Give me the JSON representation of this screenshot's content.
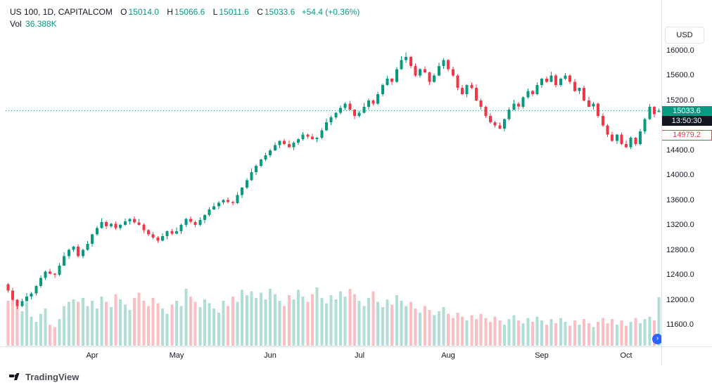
{
  "header": {
    "symbol": "US 100, 1D, CAPITALCOM",
    "ohlc": {
      "open_label": "O",
      "open": "15014.0",
      "high_label": "H",
      "high": "15066.6",
      "low_label": "L",
      "low": "15011.6",
      "close_label": "C",
      "close": "15033.6",
      "change": "+54.4 (+0.36%)"
    },
    "volume_label": "Vol",
    "volume_value": "36.388K"
  },
  "price_axis": {
    "currency_button": "USD",
    "ticks": [
      "16000.0",
      "15600.0",
      "15200.0",
      "14400.0",
      "14000.0",
      "13600.0",
      "13200.0",
      "12800.0",
      "12400.0",
      "12000.0",
      "11600.0"
    ],
    "last_price_badge": "15033.6",
    "countdown_badge": "13:50:30",
    "prev_close_badge": "14979.2"
  },
  "footer": {
    "brand": "TradingView"
  },
  "colors": {
    "up": "#089981",
    "down": "#f23645",
    "axis_text": "#131722",
    "muted_text": "#787b86",
    "border": "#e0e3eb",
    "accent_blue": "#2962ff",
    "countdown_bg": "#131722"
  },
  "chart_data": {
    "type": "candlestick",
    "symbol": "US 100",
    "interval": "1D",
    "exchange": "CAPITALCOM",
    "title": "US 100, 1D, CAPITALCOM",
    "last_price": 15033.6,
    "prev_close": 14979.2,
    "change": 54.4,
    "change_pct": 0.36,
    "current_volume_k": 36.388,
    "price_axis_range": [
      11500,
      16150
    ],
    "grid": false,
    "legend_position": "top-left",
    "x_tick_labels": [
      "Apr",
      "May",
      "Jun",
      "Jul",
      "Aug",
      "Sep",
      "Oct"
    ],
    "x_tick_indices": [
      18,
      36,
      56,
      75,
      94,
      114,
      132
    ],
    "volume_unit": "K",
    "open": [
      12250,
      12150,
      12000,
      11900,
      11980,
      12050,
      12100,
      12220,
      12350,
      12450,
      12420,
      12400,
      12550,
      12700,
      12800,
      12850,
      12700,
      12800,
      12900,
      13050,
      13150,
      13250,
      13180,
      13220,
      13150,
      13200,
      13260,
      13300,
      13240,
      13200,
      13120,
      13050,
      13000,
      12950,
      13020,
      13100,
      13060,
      13100,
      13200,
      13300,
      13250,
      13200,
      13280,
      13360,
      13450,
      13500,
      13560,
      13600,
      13570,
      13550,
      13680,
      13800,
      13920,
      14050,
      14150,
      14250,
      14320,
      14400,
      14480,
      14550,
      14500,
      14450,
      14520,
      14580,
      14650,
      14620,
      14580,
      14600,
      14720,
      14850,
      14930,
      15000,
      15080,
      15150,
      15050,
      14950,
      15000,
      15100,
      15200,
      15150,
      15300,
      15450,
      15550,
      15500,
      15700,
      15850,
      15900,
      15750,
      15600,
      15700,
      15650,
      15500,
      15600,
      15750,
      15850,
      15700,
      15600,
      15400,
      15300,
      15450,
      15400,
      15200,
      15100,
      14950,
      14850,
      14800,
      14750,
      14900,
      15050,
      15150,
      15100,
      15250,
      15350,
      15300,
      15450,
      15550,
      15500,
      15600,
      15450,
      15550,
      15600,
      15500,
      15350,
      15400,
      15200,
      15100,
      15150,
      14950,
      14800,
      14650,
      14550,
      14650,
      14500,
      14450,
      14600,
      14500,
      14700,
      14900,
      15100,
      15014.0
    ],
    "high": [
      12270,
      12195,
      12010,
      12015,
      12110,
      12125,
      12235,
      12390,
      12470,
      12495,
      12430,
      12585,
      12760,
      12825,
      12865,
      12890,
      12820,
      12945,
      13060,
      13185,
      13310,
      13275,
      13235,
      13260,
      13220,
      13305,
      13310,
      13335,
      13300,
      13225,
      13135,
      13090,
      13020,
      13065,
      13110,
      13135,
      13160,
      13225,
      13315,
      13340,
      13270,
      13325,
      13370,
      13485,
      13560,
      13585,
      13615,
      13640,
      13590,
      13725,
      13810,
      13955,
      14110,
      14175,
      14265,
      14360,
      14420,
      14525,
      14560,
      14585,
      14560,
      14545,
      14595,
      14690,
      14670,
      14665,
      14610,
      14755,
      14910,
      14955,
      15015,
      15120,
      15170,
      15195,
      15060,
      15035,
      15160,
      15225,
      15215,
      15340,
      15470,
      15595,
      15560,
      15735,
      15910,
      15970,
      15915,
      15790,
      15720,
      15745,
      15660,
      15635,
      15810,
      15875,
      15865,
      15740,
      15620,
      15445,
      15460,
      15485,
      15460,
      15225,
      15115,
      14990,
      14870,
      14845,
      14910,
      15085,
      15210,
      15175,
      15265,
      15390,
      15370,
      15495,
      15560,
      15585,
      15660,
      15625,
      15565,
      15640,
      15620,
      15545,
      15410,
      15435,
      15260,
      15175,
      15165,
      14990,
      14820,
      14695,
      14660,
      14685,
      14560,
      14625,
      14615,
      14740,
      14920,
      15145,
      15110,
      15066.6
    ],
    "low": [
      12115,
      11985,
      11850,
      11880,
      11970,
      12005,
      12070,
      12195,
      12315,
      12405,
      12350,
      12380,
      12540,
      12655,
      12770,
      12675,
      12665,
      12785,
      12850,
      13030,
      13140,
      13135,
      13150,
      13125,
      13115,
      13185,
      13210,
      13220,
      13190,
      13075,
      13020,
      12975,
      12915,
      12935,
      12970,
      13040,
      13050,
      13055,
      13170,
      13225,
      13165,
      13185,
      13230,
      13340,
      13440,
      13455,
      13530,
      13545,
      13515,
      13535,
      13630,
      13780,
      13910,
      14005,
      14120,
      14225,
      14285,
      14385,
      14430,
      14480,
      14440,
      14405,
      14490,
      14555,
      14585,
      14565,
      14530,
      14580,
      14710,
      14805,
      14900,
      14975,
      15045,
      15035,
      14900,
      14930,
      14990,
      15055,
      15120,
      15125,
      15265,
      15435,
      15450,
      15480,
      15690,
      15805,
      15720,
      15575,
      15565,
      15635,
      15450,
      15480,
      15590,
      15705,
      15670,
      15575,
      15365,
      15285,
      15250,
      15380,
      15190,
      15055,
      14920,
      14825,
      14765,
      14735,
      14700,
      14880,
      15040,
      15055,
      15070,
      15225,
      15265,
      15285,
      15400,
      15480,
      15490,
      15405,
      15420,
      15525,
      15465,
      15335,
      15300,
      15180,
      15090,
      15055,
      14920,
      14775,
      14615,
      14535,
      14500,
      14480,
      14430,
      14420,
      14470,
      14475,
      14665,
      14885,
      14930,
      15011.6
    ],
    "close": [
      12150,
      12000,
      11900,
      11980,
      12050,
      12100,
      12220,
      12350,
      12450,
      12420,
      12400,
      12550,
      12700,
      12800,
      12850,
      12700,
      12800,
      12900,
      13050,
      13150,
      13250,
      13180,
      13220,
      13150,
      13200,
      13260,
      13300,
      13240,
      13200,
      13120,
      13050,
      13000,
      12950,
      13020,
      13100,
      13060,
      13100,
      13200,
      13300,
      13250,
      13200,
      13280,
      13360,
      13450,
      13500,
      13560,
      13600,
      13570,
      13550,
      13680,
      13800,
      13920,
      14050,
      14150,
      14250,
      14320,
      14400,
      14480,
      14550,
      14500,
      14450,
      14520,
      14580,
      14650,
      14620,
      14580,
      14600,
      14720,
      14850,
      14930,
      15000,
      15080,
      15150,
      15050,
      14950,
      15000,
      15100,
      15200,
      15150,
      15300,
      15450,
      15550,
      15500,
      15700,
      15850,
      15900,
      15750,
      15600,
      15700,
      15650,
      15500,
      15600,
      15750,
      15850,
      15700,
      15600,
      15400,
      15300,
      15450,
      15400,
      15200,
      15100,
      14950,
      14850,
      14800,
      14750,
      14900,
      15050,
      15150,
      15100,
      15250,
      15350,
      15300,
      15450,
      15550,
      15500,
      15600,
      15450,
      15550,
      15600,
      15500,
      15350,
      15400,
      15200,
      15100,
      15150,
      14950,
      14800,
      14650,
      14550,
      14650,
      14500,
      14450,
      14600,
      14500,
      14700,
      14900,
      15100,
      14979.2,
      15033.6
    ],
    "volume": [
      34,
      38,
      30,
      26,
      33,
      22,
      18,
      24,
      28,
      16,
      14,
      20,
      30,
      33,
      35,
      33,
      36,
      30,
      34,
      28,
      37,
      33,
      29,
      39,
      35,
      31,
      27,
      36,
      40,
      34,
      30,
      36,
      32,
      28,
      24,
      31,
      34,
      30,
      43,
      37,
      33,
      29,
      35,
      32,
      28,
      25,
      34,
      30,
      37,
      33,
      42,
      38,
      41,
      36,
      40,
      35,
      43,
      39,
      34,
      30,
      38,
      35,
      42,
      37,
      33,
      39,
      44,
      36,
      32,
      38,
      35,
      41,
      37,
      43,
      39,
      34,
      30,
      36,
      41,
      33,
      29,
      35,
      31,
      38,
      34,
      30,
      33,
      28,
      25,
      30,
      27,
      23,
      26,
      29,
      24,
      21,
      25,
      22,
      19,
      23,
      20,
      24,
      21,
      18,
      22,
      19,
      16,
      20,
      23,
      19,
      17,
      21,
      18,
      22,
      19,
      16,
      20,
      17,
      21,
      18,
      15,
      19,
      16,
      20,
      17,
      14,
      18,
      21,
      17,
      20,
      16,
      19,
      15,
      18,
      21,
      17,
      20,
      22,
      19,
      36.4
    ]
  }
}
